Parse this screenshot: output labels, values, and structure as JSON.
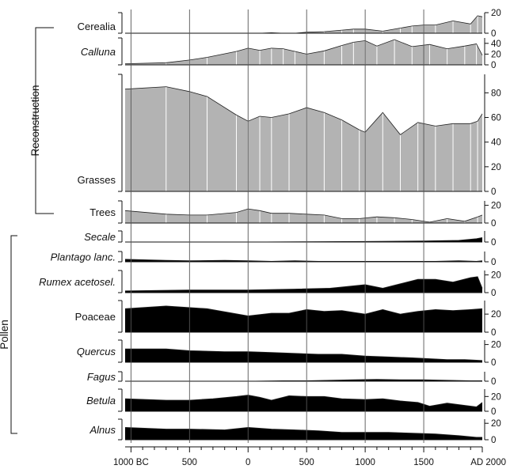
{
  "chart_data": {
    "type": "area",
    "x_axis": {
      "ticks": [
        {
          "x": -1000,
          "label": "1000 BC"
        },
        {
          "x": -500,
          "label": "500"
        },
        {
          "x": 0,
          "label": "0"
        },
        {
          "x": 500,
          "label": "500"
        },
        {
          "x": 1000,
          "label": "1000"
        },
        {
          "x": 1500,
          "label": "1500"
        },
        {
          "x": 2000,
          "label": "AD 2000"
        }
      ],
      "xlim": [
        -1050,
        2000
      ]
    },
    "groups": [
      {
        "name": "Reconstruction",
        "series": [
          "cerealia",
          "calluna",
          "grasses",
          "trees"
        ]
      },
      {
        "name": "Pollen",
        "series": [
          "secale",
          "plantago",
          "rumex",
          "poaceae",
          "quercus",
          "fagus",
          "betula",
          "alnus"
        ]
      }
    ],
    "series": [
      {
        "id": "cerealia",
        "name": "Cerealia",
        "italic": false,
        "fill": "#b3b3b3",
        "ylim": [
          0,
          20
        ],
        "ticks": [
          "0",
          "20"
        ],
        "points": [
          [
            -1050,
            0
          ],
          [
            -700,
            0
          ],
          [
            -500,
            0
          ],
          [
            -350,
            0
          ],
          [
            -100,
            0
          ],
          [
            0,
            0
          ],
          [
            100,
            0
          ],
          [
            200,
            0.5
          ],
          [
            300,
            0
          ],
          [
            400,
            0
          ],
          [
            500,
            1
          ],
          [
            650,
            1.5
          ],
          [
            800,
            3
          ],
          [
            900,
            4
          ],
          [
            1000,
            4
          ],
          [
            1150,
            2
          ],
          [
            1300,
            5
          ],
          [
            1400,
            7
          ],
          [
            1500,
            8
          ],
          [
            1600,
            8
          ],
          [
            1750,
            12
          ],
          [
            1900,
            9
          ],
          [
            1960,
            17
          ],
          [
            2000,
            16
          ]
        ]
      },
      {
        "id": "calluna",
        "name": "Calluna",
        "italic": true,
        "fill": "#b3b3b3",
        "ylim": [
          0,
          50
        ],
        "ticks": [
          "0",
          "20",
          "40"
        ],
        "points": [
          [
            -1050,
            2
          ],
          [
            -700,
            4
          ],
          [
            -500,
            9
          ],
          [
            -350,
            14
          ],
          [
            -100,
            25
          ],
          [
            0,
            31
          ],
          [
            100,
            27
          ],
          [
            200,
            31
          ],
          [
            300,
            30
          ],
          [
            400,
            25
          ],
          [
            500,
            20
          ],
          [
            650,
            26
          ],
          [
            800,
            36
          ],
          [
            900,
            42
          ],
          [
            1000,
            45
          ],
          [
            1100,
            35
          ],
          [
            1250,
            47
          ],
          [
            1400,
            34
          ],
          [
            1550,
            38
          ],
          [
            1700,
            30
          ],
          [
            1850,
            35
          ],
          [
            1950,
            39
          ],
          [
            2000,
            18
          ]
        ]
      },
      {
        "id": "grasses",
        "name": "Grasses",
        "italic": false,
        "fill": "#b3b3b3",
        "ylim": [
          0,
          95
        ],
        "ticks": [
          "0",
          "20",
          "40",
          "60",
          "80"
        ],
        "points": [
          [
            -1050,
            83
          ],
          [
            -700,
            85
          ],
          [
            -500,
            81
          ],
          [
            -350,
            77
          ],
          [
            -100,
            62
          ],
          [
            0,
            57
          ],
          [
            100,
            61
          ],
          [
            200,
            60
          ],
          [
            350,
            63
          ],
          [
            500,
            68
          ],
          [
            650,
            64
          ],
          [
            800,
            58
          ],
          [
            950,
            50
          ],
          [
            1000,
            48
          ],
          [
            1150,
            64
          ],
          [
            1300,
            46
          ],
          [
            1450,
            56
          ],
          [
            1600,
            53
          ],
          [
            1750,
            55
          ],
          [
            1900,
            55
          ],
          [
            1960,
            57
          ],
          [
            2000,
            63
          ]
        ]
      },
      {
        "id": "trees",
        "name": "Trees",
        "italic": false,
        "fill": "#b3b3b3",
        "ylim": [
          0,
          25
        ],
        "ticks": [
          "0",
          "20"
        ],
        "points": [
          [
            -1050,
            14
          ],
          [
            -700,
            10
          ],
          [
            -500,
            9
          ],
          [
            -350,
            9
          ],
          [
            -100,
            12
          ],
          [
            0,
            16
          ],
          [
            100,
            14
          ],
          [
            200,
            11
          ],
          [
            350,
            11
          ],
          [
            500,
            10
          ],
          [
            650,
            9
          ],
          [
            800,
            5
          ],
          [
            950,
            5
          ],
          [
            1100,
            7
          ],
          [
            1250,
            6
          ],
          [
            1400,
            4
          ],
          [
            1550,
            1
          ],
          [
            1700,
            5
          ],
          [
            1850,
            2
          ],
          [
            1960,
            7
          ],
          [
            2000,
            9
          ]
        ]
      },
      {
        "id": "secale",
        "name": "Secale",
        "italic": true,
        "fill": "#000000",
        "ylim": [
          0,
          20
        ],
        "ticks": [
          "0"
        ],
        "points": [
          [
            -1050,
            0
          ],
          [
            0,
            0
          ],
          [
            500,
            0.5
          ],
          [
            1000,
            1
          ],
          [
            1500,
            2
          ],
          [
            1800,
            3
          ],
          [
            1950,
            6
          ],
          [
            2000,
            8
          ]
        ]
      },
      {
        "id": "plantago",
        "name": "Plantago lanc.",
        "italic": true,
        "fill": "#000000",
        "ylim": [
          0,
          20
        ],
        "ticks": [
          "0"
        ],
        "points": [
          [
            -1050,
            5
          ],
          [
            -900,
            4
          ],
          [
            -700,
            3
          ],
          [
            -500,
            2
          ],
          [
            -200,
            3
          ],
          [
            0,
            2
          ],
          [
            200,
            1
          ],
          [
            400,
            2
          ],
          [
            600,
            1
          ],
          [
            800,
            1
          ],
          [
            1000,
            1
          ],
          [
            1200,
            1
          ],
          [
            1400,
            1
          ],
          [
            1600,
            1
          ],
          [
            1800,
            2
          ],
          [
            1950,
            1
          ],
          [
            2000,
            2
          ]
        ]
      },
      {
        "id": "rumex",
        "name": "Rumex acetosel.",
        "italic": true,
        "fill": "#000000",
        "ylim": [
          0,
          25
        ],
        "ticks": [
          "0",
          "20"
        ],
        "points": [
          [
            -1050,
            2
          ],
          [
            -500,
            3
          ],
          [
            0,
            3
          ],
          [
            400,
            4
          ],
          [
            700,
            5
          ],
          [
            850,
            7
          ],
          [
            1000,
            9
          ],
          [
            1150,
            5
          ],
          [
            1300,
            10
          ],
          [
            1450,
            15
          ],
          [
            1600,
            15
          ],
          [
            1750,
            12
          ],
          [
            1900,
            17
          ],
          [
            1960,
            18
          ],
          [
            2000,
            5
          ]
        ]
      },
      {
        "id": "poaceae",
        "name": "Poaceae",
        "italic": false,
        "fill": "#000000",
        "ylim": [
          0,
          35
        ],
        "ticks": [
          "0",
          "20"
        ],
        "points": [
          [
            -1050,
            26
          ],
          [
            -700,
            29
          ],
          [
            -350,
            26
          ],
          [
            0,
            18
          ],
          [
            200,
            21
          ],
          [
            350,
            21
          ],
          [
            500,
            25
          ],
          [
            650,
            23
          ],
          [
            800,
            24
          ],
          [
            1000,
            20
          ],
          [
            1150,
            25
          ],
          [
            1300,
            20
          ],
          [
            1450,
            23
          ],
          [
            1600,
            25
          ],
          [
            1750,
            24
          ],
          [
            1900,
            25
          ],
          [
            2000,
            26
          ]
        ]
      },
      {
        "id": "quercus",
        "name": "Quercus",
        "italic": true,
        "fill": "#000000",
        "ylim": [
          0,
          25
        ],
        "ticks": [
          "0",
          "20"
        ],
        "points": [
          [
            -1050,
            15
          ],
          [
            -700,
            15
          ],
          [
            -500,
            13
          ],
          [
            -200,
            12
          ],
          [
            0,
            12
          ],
          [
            200,
            11
          ],
          [
            400,
            10
          ],
          [
            600,
            9
          ],
          [
            800,
            9
          ],
          [
            1000,
            7
          ],
          [
            1200,
            6
          ],
          [
            1400,
            5
          ],
          [
            1550,
            4
          ],
          [
            1700,
            3
          ],
          [
            1850,
            3
          ],
          [
            2000,
            2
          ]
        ]
      },
      {
        "id": "fagus",
        "name": "Fagus",
        "italic": true,
        "fill": "#000000",
        "ylim": [
          0,
          20
        ],
        "ticks": [
          "0"
        ],
        "points": [
          [
            -1050,
            0
          ],
          [
            -200,
            0
          ],
          [
            0,
            0
          ],
          [
            300,
            1
          ],
          [
            500,
            1
          ],
          [
            700,
            2
          ],
          [
            900,
            3
          ],
          [
            1100,
            4
          ],
          [
            1300,
            3
          ],
          [
            1500,
            3
          ],
          [
            1700,
            2
          ],
          [
            1900,
            1
          ],
          [
            2000,
            1
          ]
        ]
      },
      {
        "id": "betula",
        "name": "Betula",
        "italic": true,
        "fill": "#000000",
        "ylim": [
          0,
          30
        ],
        "ticks": [
          "0",
          "20"
        ],
        "points": [
          [
            -1050,
            17
          ],
          [
            -700,
            15
          ],
          [
            -500,
            15
          ],
          [
            -300,
            17
          ],
          [
            -100,
            20
          ],
          [
            0,
            22
          ],
          [
            100,
            19
          ],
          [
            200,
            15
          ],
          [
            350,
            21
          ],
          [
            500,
            20
          ],
          [
            650,
            20
          ],
          [
            800,
            17
          ],
          [
            1000,
            16
          ],
          [
            1150,
            17
          ],
          [
            1300,
            14
          ],
          [
            1450,
            12
          ],
          [
            1550,
            7
          ],
          [
            1700,
            11
          ],
          [
            1850,
            8
          ],
          [
            1950,
            6
          ],
          [
            2000,
            12
          ]
        ]
      },
      {
        "id": "alnus",
        "name": "Alnus",
        "italic": true,
        "fill": "#000000",
        "ylim": [
          0,
          25
        ],
        "ticks": [
          "0",
          "20"
        ],
        "points": [
          [
            -1050,
            15
          ],
          [
            -700,
            13
          ],
          [
            -500,
            13
          ],
          [
            -200,
            12
          ],
          [
            0,
            15
          ],
          [
            200,
            13
          ],
          [
            400,
            12
          ],
          [
            600,
            11
          ],
          [
            800,
            9
          ],
          [
            1000,
            9
          ],
          [
            1200,
            9
          ],
          [
            1400,
            8
          ],
          [
            1600,
            7
          ],
          [
            1800,
            5
          ],
          [
            1950,
            3
          ],
          [
            2000,
            3
          ]
        ]
      }
    ]
  }
}
